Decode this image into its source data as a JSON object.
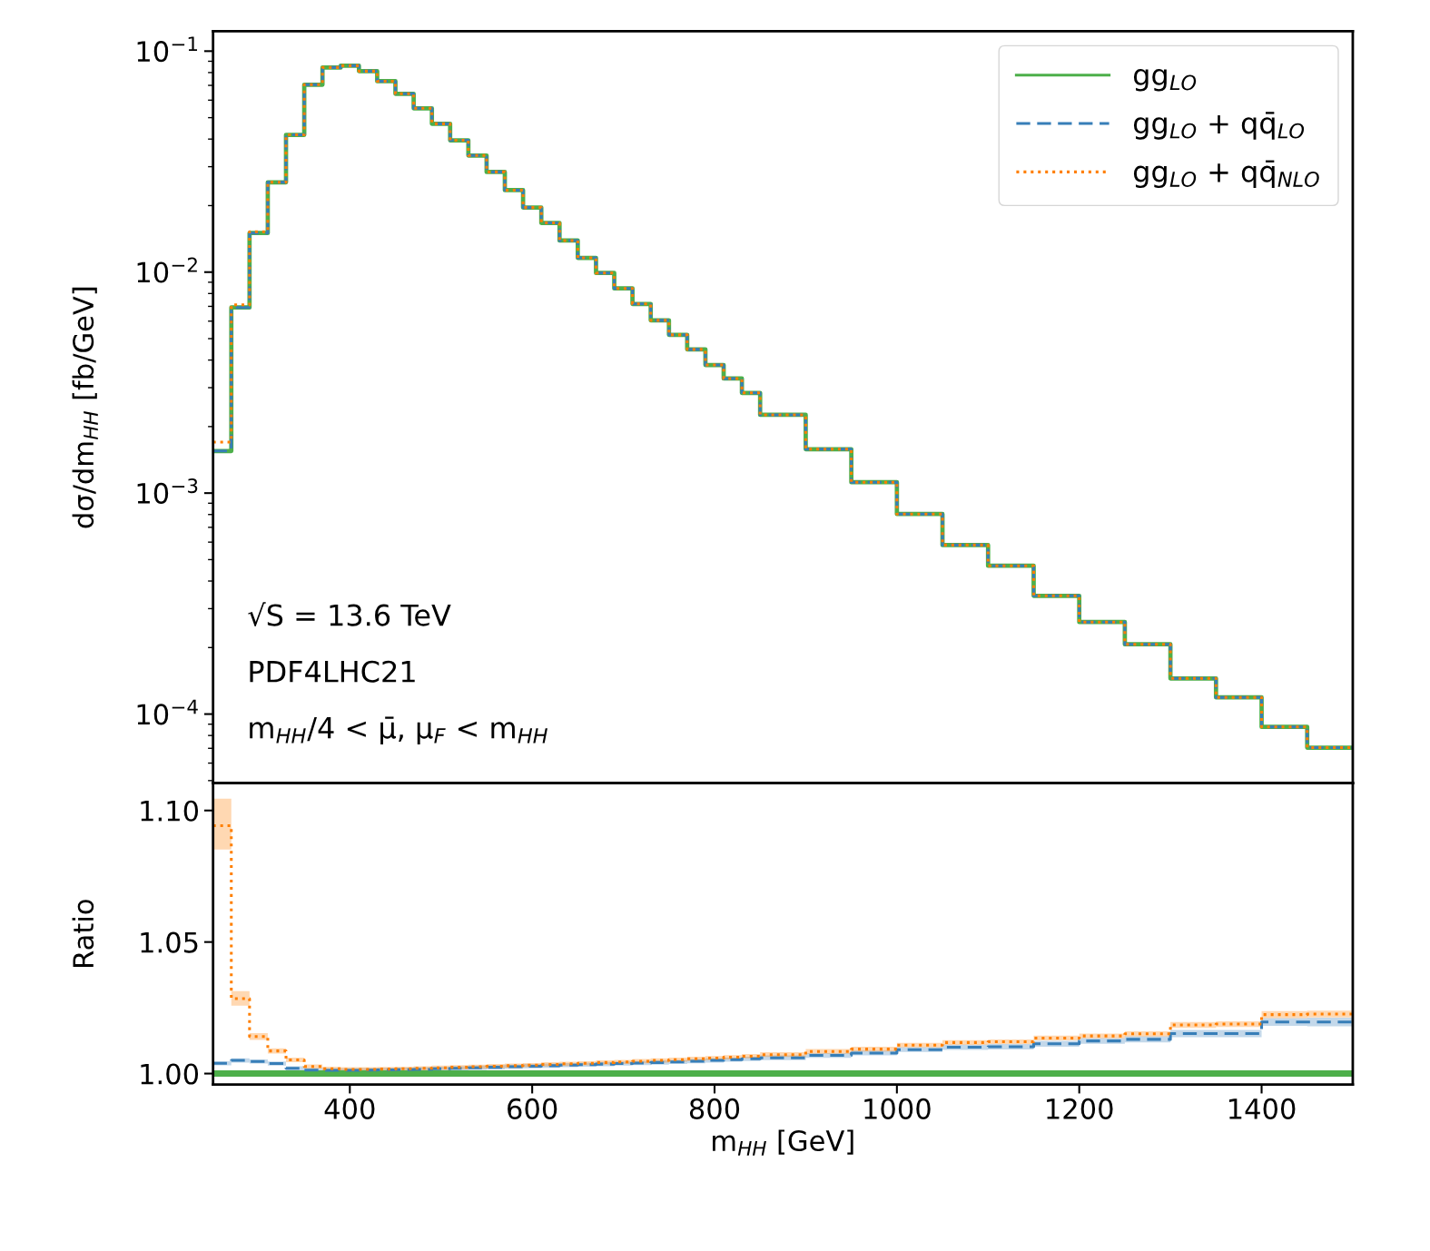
{
  "chart_data": [
    {
      "type": "step",
      "ylabel": "dσ/dm$_{HH}$ [fb/GeV]",
      "log": "y",
      "legend": "top right",
      "tick_labels": "y",
      "grid": false,
      "x": [
        250,
        270,
        290,
        310,
        330,
        350,
        370,
        390,
        410,
        430,
        450,
        470,
        490,
        510,
        530,
        550,
        570,
        590,
        610,
        630,
        650,
        670,
        690,
        710,
        730,
        750,
        770,
        790,
        810,
        830,
        850,
        900,
        950,
        1000,
        1050,
        1100,
        1150,
        1200,
        1250,
        1300,
        1350,
        1400,
        1450,
        1500
      ],
      "xlim": [
        250,
        1500
      ],
      "ylim": [
        4.87e-05,
        0.123
      ],
      "yticks": [
        {
          "value": 0.0001,
          "label": "10$^{−4}$"
        },
        {
          "value": 0.001,
          "label": "10$^{−3}$"
        },
        {
          "value": 0.01,
          "label": "10$^{−2}$"
        },
        {
          "value": 0.1,
          "label": "10$^{−1}$"
        }
      ],
      "annotations": [
        "√S = 13.6 TeV",
        "PDF4LHC21",
        "m$_{HH}$/4 < μ̄, μ$_{F}$ < m$_{HH}$"
      ],
      "series": [
        {
          "name": "gg$_{LO}$",
          "color": "#4daf4a",
          "line_style": "solid",
          "values": [
            0.00155,
            0.00692,
            0.01503,
            0.0255,
            0.0418,
            0.0705,
            0.0843,
            0.0859,
            0.0812,
            0.0731,
            0.0641,
            0.0551,
            0.0469,
            0.0395,
            0.0337,
            0.0284,
            0.0235,
            0.0196,
            0.0167,
            0.0139,
            0.0116,
            0.00991,
            0.00844,
            0.00718,
            0.00605,
            0.0052,
            0.00447,
            0.0038,
            0.0033,
            0.00284,
            0.00226,
            0.00158,
            0.00112,
            0.000804,
            0.000582,
            0.000469,
            0.000343,
            0.000261,
            0.000207,
            0.000145,
            0.000119,
            8.75e-05,
            7.05e-05,
            7.05e-05
          ]
        },
        {
          "name": "gg$_{LO}$ + qq̄$_{LO}$",
          "color": "#377eb8",
          "line_style": "dashed",
          "values": [
            0.00155,
            0.00692,
            0.01503,
            0.0255,
            0.0418,
            0.0705,
            0.0843,
            0.0859,
            0.0812,
            0.0731,
            0.0641,
            0.0551,
            0.0469,
            0.0395,
            0.0337,
            0.0284,
            0.0235,
            0.0196,
            0.0167,
            0.0139,
            0.0116,
            0.00991,
            0.00844,
            0.00718,
            0.00605,
            0.0052,
            0.00447,
            0.0038,
            0.0033,
            0.00284,
            0.00226,
            0.00158,
            0.00112,
            0.000804,
            0.000582,
            0.000469,
            0.000343,
            0.000261,
            0.000207,
            0.000145,
            0.000119,
            8.75e-05,
            7.05e-05,
            7.05e-05
          ]
        },
        {
          "name": "gg$_{LO}$ + qq̄$_{NLO}$",
          "color": "#ff7f00",
          "line_style": "dotted",
          "values": [
            0.0017,
            0.00712,
            0.01524,
            0.0255,
            0.0418,
            0.0705,
            0.0843,
            0.0859,
            0.0812,
            0.0731,
            0.0641,
            0.0551,
            0.0469,
            0.0395,
            0.0337,
            0.0284,
            0.0235,
            0.0196,
            0.0167,
            0.0139,
            0.0116,
            0.00991,
            0.00844,
            0.00718,
            0.00605,
            0.0052,
            0.00447,
            0.0038,
            0.0033,
            0.00284,
            0.00226,
            0.00158,
            0.00112,
            0.000804,
            0.000582,
            0.000469,
            0.000343,
            0.000261,
            0.000207,
            0.000145,
            0.000119,
            8.75e-05,
            7.05e-05,
            7.05e-05
          ]
        }
      ]
    },
    {
      "type": "step",
      "ylabel": "Ratio",
      "xlabel": "m$_{HH}$ [GeV]",
      "grid": false,
      "x": [
        250,
        270,
        290,
        310,
        330,
        350,
        370,
        390,
        410,
        430,
        450,
        470,
        490,
        510,
        530,
        550,
        570,
        590,
        610,
        630,
        650,
        670,
        690,
        710,
        730,
        750,
        770,
        790,
        810,
        830,
        850,
        900,
        950,
        1000,
        1050,
        1100,
        1150,
        1200,
        1250,
        1300,
        1350,
        1400,
        1450,
        1500
      ],
      "xlim": [
        250,
        1500
      ],
      "ylim": [
        0.9958,
        1.1104
      ],
      "xticks": [
        400,
        600,
        800,
        1000,
        1200,
        1400
      ],
      "yticks": [
        {
          "value": 1.0,
          "label": "1.00"
        },
        1.05,
        {
          "value": 1.1,
          "label": "1.10"
        }
      ],
      "series": [
        {
          "color": "#4daf4a",
          "line_style": "solid",
          "values": [
            1,
            1,
            1,
            1,
            1,
            1,
            1,
            1,
            1,
            1,
            1,
            1,
            1,
            1,
            1,
            1,
            1,
            1,
            1,
            1,
            1,
            1,
            1,
            1,
            1,
            1,
            1,
            1,
            1,
            1,
            1,
            1,
            1,
            1,
            1,
            1,
            1,
            1,
            1,
            1,
            1,
            1,
            1,
            1
          ]
        },
        {
          "color": "#377eb8",
          "line_style": "dashed",
          "values": [
            1.0039,
            1.005,
            1.0046,
            1.0038,
            1.002,
            1.0013,
            1.0012,
            1.0012,
            1.0013,
            1.0014,
            1.0015,
            1.0016,
            1.0018,
            1.002,
            1.0022,
            1.0024,
            1.0026,
            1.0028,
            1.003,
            1.0032,
            1.0034,
            1.0036,
            1.0038,
            1.004,
            1.0042,
            1.0044,
            1.0047,
            1.005,
            1.0053,
            1.0056,
            1.006,
            1.0069,
            1.0078,
            1.0091,
            1.01,
            1.0102,
            1.0113,
            1.0124,
            1.013,
            1.0152,
            1.0152,
            1.0196,
            1.0196,
            1.0196
          ],
          "lower": [
            1.0031,
            1.0042,
            1.0038,
            1.003,
            1.0012,
            1.0005,
            1.0004,
            1.0004,
            1.0005,
            1.0006,
            1.0007,
            1.0008,
            1.001,
            1.0012,
            1.0014,
            1.0016,
            1.0018,
            1.002,
            1.0022,
            1.0024,
            1.0026,
            1.0028,
            1.003,
            1.0032,
            1.0034,
            1.0036,
            1.0039,
            1.0042,
            1.0045,
            1.0048,
            1.0051,
            1.006,
            1.0069,
            1.0082,
            1.009,
            1.0092,
            1.0102,
            1.0113,
            1.0118,
            1.0138,
            1.0138,
            1.0181,
            1.018,
            1.018
          ],
          "upper": [
            1.0047,
            1.0058,
            1.0054,
            1.0046,
            1.0028,
            1.0021,
            1.002,
            1.002,
            1.0021,
            1.0022,
            1.0023,
            1.0024,
            1.0026,
            1.0028,
            1.003,
            1.0032,
            1.0034,
            1.0036,
            1.0038,
            1.004,
            1.0042,
            1.0044,
            1.0046,
            1.0048,
            1.005,
            1.0052,
            1.0055,
            1.0058,
            1.0061,
            1.0064,
            1.0069,
            1.0078,
            1.0087,
            1.01,
            1.011,
            1.0112,
            1.0124,
            1.0135,
            1.0142,
            1.0166,
            1.0166,
            1.0211,
            1.0212,
            1.0212
          ]
        },
        {
          "color": "#ff7f00",
          "line_style": "dotted",
          "values": [
            1.0942,
            1.0285,
            1.0141,
            1.0086,
            1.0052,
            1.0027,
            1.0018,
            1.0016,
            1.0016,
            1.0017,
            1.0018,
            1.002,
            1.0022,
            1.0024,
            1.0026,
            1.0028,
            1.003,
            1.0032,
            1.0035,
            1.0037,
            1.0039,
            1.0042,
            1.0044,
            1.0047,
            1.005,
            1.0053,
            1.0056,
            1.0059,
            1.0062,
            1.0066,
            1.0072,
            1.0084,
            1.0093,
            1.0108,
            1.0118,
            1.0121,
            1.0135,
            1.0143,
            1.0151,
            1.0185,
            1.0188,
            1.0224,
            1.0226,
            1.0226
          ],
          "lower": [
            1.0852,
            1.0258,
            1.0128,
            1.0076,
            1.0043,
            1.0019,
            1.001,
            1.0008,
            1.0008,
            1.0009,
            1.001,
            1.0012,
            1.0014,
            1.0016,
            1.0018,
            1.002,
            1.0022,
            1.0024,
            1.0027,
            1.0029,
            1.0031,
            1.0034,
            1.0036,
            1.0039,
            1.0042,
            1.0045,
            1.0048,
            1.0051,
            1.0054,
            1.0058,
            1.0063,
            1.0075,
            1.0084,
            1.0099,
            1.0109,
            1.0112,
            1.0126,
            1.0134,
            1.0141,
            1.0174,
            1.0177,
            1.0211,
            1.0213,
            1.0213
          ],
          "upper": [
            1.1045,
            1.0313,
            1.0154,
            1.0096,
            1.0061,
            1.0035,
            1.0026,
            1.0024,
            1.0024,
            1.0025,
            1.0026,
            1.0028,
            1.003,
            1.0032,
            1.0034,
            1.0036,
            1.0038,
            1.004,
            1.0043,
            1.0045,
            1.0047,
            1.005,
            1.0052,
            1.0055,
            1.0058,
            1.0061,
            1.0064,
            1.0067,
            1.007,
            1.0074,
            1.0081,
            1.0093,
            1.0102,
            1.0117,
            1.0127,
            1.013,
            1.0144,
            1.0152,
            1.0161,
            1.0196,
            1.0199,
            1.0237,
            1.0239,
            1.0239
          ]
        }
      ]
    }
  ]
}
